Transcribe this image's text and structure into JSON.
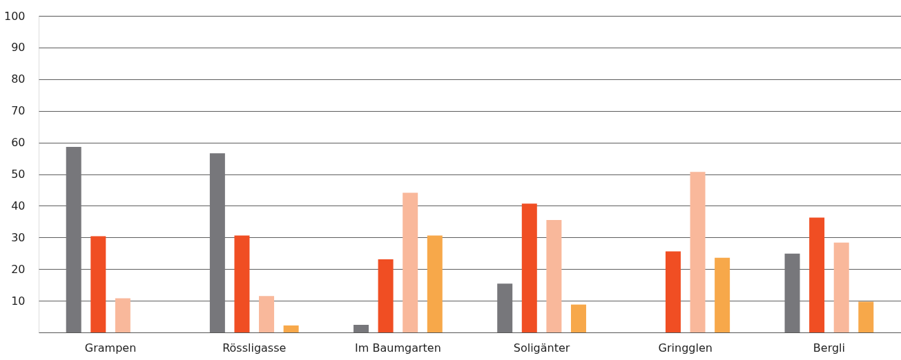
{
  "chart_data": {
    "type": "bar",
    "categories": [
      "Grampen",
      "Rössligasse",
      "Im Baumgarten",
      "Soligänter",
      "Gringglen",
      "Bergli"
    ],
    "series": [
      {
        "color": "#77777b",
        "values": [
          58.6,
          56.6,
          2.4,
          15.4,
          0,
          24.9
        ]
      },
      {
        "color": "#f04e23",
        "values": [
          30.4,
          30.6,
          23.1,
          40.7,
          25.6,
          36.3
        ]
      },
      {
        "color": "#f9b89b",
        "values": [
          10.8,
          11.5,
          44.1,
          35.5,
          50.7,
          28.4
        ]
      },
      {
        "color": "#f7a84a",
        "values": [
          0,
          2.2,
          30.6,
          8.8,
          23.6,
          9.7
        ]
      }
    ],
    "ylim": [
      0,
      100
    ],
    "yticks": [
      10,
      20,
      30,
      40,
      50,
      60,
      70,
      80,
      90,
      100
    ],
    "grid": "y",
    "legend": false
  }
}
